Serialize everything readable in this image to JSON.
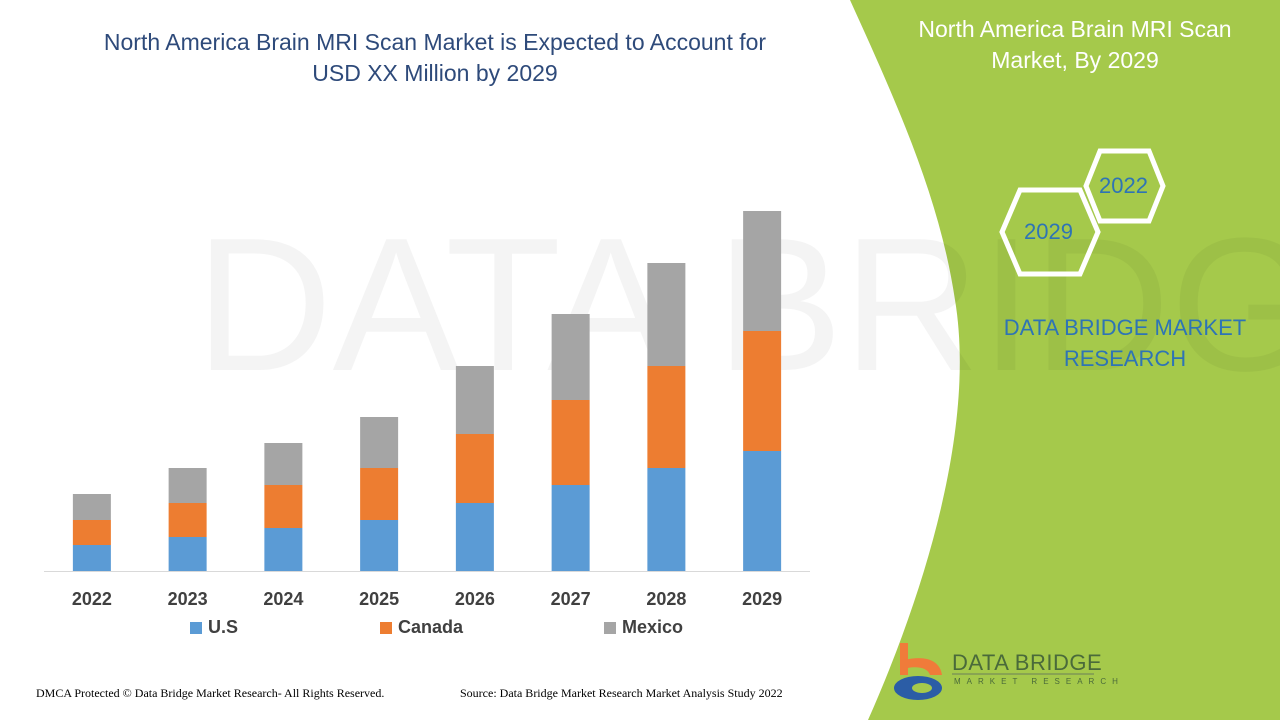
{
  "title": "North America Brain MRI Scan Market is Expected to Account for USD XX Million by 2029",
  "side_panel": {
    "title": "North America Brain MRI Scan Market, By 2029",
    "hex_years": [
      "2022",
      "2029"
    ],
    "brand": "DATA BRIDGE MARKET RESEARCH",
    "logo_text": "DATA BRIDGE",
    "logo_subtext": "MARKET RESEARCH",
    "color": "#a5c94b"
  },
  "footer": {
    "left": "DMCA Protected © Data Bridge Market Research- All Rights Reserved.",
    "right": "Source: Data Bridge Market Research Market Analysis Study 2022"
  },
  "chart_data": {
    "type": "bar",
    "stacked": true,
    "categories": [
      "2022",
      "2023",
      "2024",
      "2025",
      "2026",
      "2027",
      "2028",
      "2029"
    ],
    "series": [
      {
        "name": "U.S",
        "color": "#5b9bd5",
        "values": [
          26,
          34,
          43,
          51,
          68,
          86,
          103,
          120
        ]
      },
      {
        "name": "Canada",
        "color": "#ed7d31",
        "values": [
          25,
          34,
          43,
          52,
          69,
          85,
          102,
          120
        ]
      },
      {
        "name": "Mexico",
        "color": "#a5a5a5",
        "values": [
          26,
          35,
          42,
          51,
          68,
          86,
          103,
          120
        ]
      }
    ],
    "ylim": [
      0,
      360
    ],
    "grid": false,
    "legend": "bottom",
    "xlabel": "",
    "ylabel": ""
  }
}
